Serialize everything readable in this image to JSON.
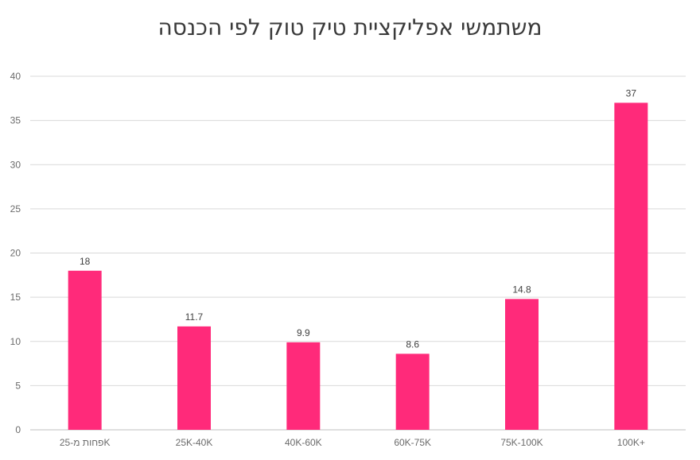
{
  "chart_data": {
    "type": "bar",
    "title": "משתמשי אפליקציית טיק טוק לפי הכנסה",
    "categories": [
      "פחות מ-25K",
      "25K-40K",
      "40K-60K",
      "60K-75K",
      "75K-100K",
      "100K+"
    ],
    "values": [
      18,
      11.7,
      9.9,
      8.6,
      14.8,
      37
    ],
    "data_labels": [
      "18",
      "11.7",
      "9.9",
      "8.6",
      "14.8",
      "37"
    ],
    "ylim": [
      0,
      40
    ],
    "yticks": [
      0,
      5,
      10,
      15,
      20,
      25,
      30,
      35,
      40
    ],
    "grid": true,
    "bar_color": "#ff2a7a"
  }
}
